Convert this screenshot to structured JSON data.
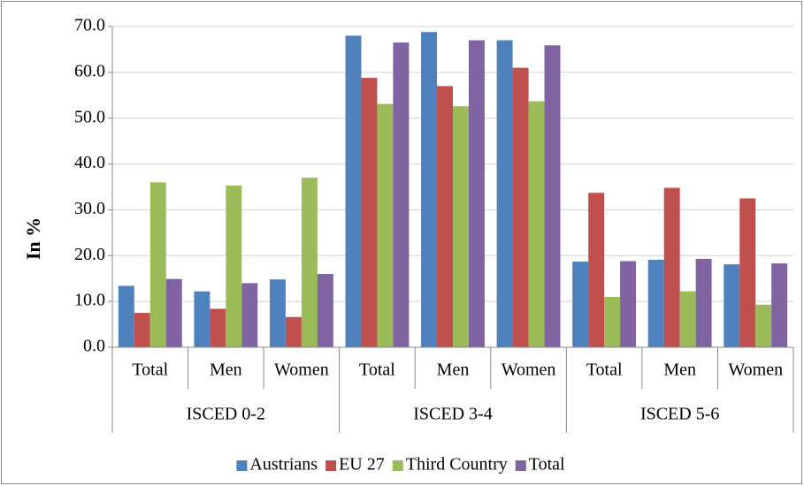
{
  "chart_data": {
    "type": "bar",
    "y_label": "In %",
    "groups": [
      "ISCED 0-2",
      "ISCED 3-4",
      "ISCED 5-6"
    ],
    "categories": [
      "Total",
      "Men",
      "Women",
      "Total",
      "Men",
      "Women",
      "Total",
      "Men",
      "Women"
    ],
    "series": [
      {
        "name": "Austrians",
        "color": "#4f81bd",
        "values": [
          13.4,
          12.2,
          14.8,
          68.0,
          68.8,
          67.0,
          18.7,
          19.1,
          18.1
        ]
      },
      {
        "name": "EU 27",
        "color": "#c0504d",
        "values": [
          7.5,
          8.4,
          6.6,
          58.8,
          57.0,
          61.0,
          33.7,
          34.8,
          32.5
        ]
      },
      {
        "name": "Third Country",
        "color": "#9bbb59",
        "values": [
          36.0,
          35.3,
          37.0,
          53.1,
          52.6,
          53.7,
          11.0,
          12.2,
          9.3
        ]
      },
      {
        "name": "Total",
        "color": "#8064a2",
        "values": [
          14.9,
          14.0,
          16.0,
          66.5,
          67.0,
          65.9,
          18.8,
          19.3,
          18.3
        ]
      }
    ],
    "ylim": [
      0,
      70
    ],
    "yticks": [
      {
        "value": 0,
        "label": "0.0"
      },
      {
        "value": 10,
        "label": "10.0"
      },
      {
        "value": 20,
        "label": "20.0"
      },
      {
        "value": 30,
        "label": "30.0"
      },
      {
        "value": 40,
        "label": "40.0"
      },
      {
        "value": 50,
        "label": "50.0"
      },
      {
        "value": 60,
        "label": "60.0"
      },
      {
        "value": 70,
        "label": "70.0"
      }
    ],
    "grid": true,
    "legend": "bottom"
  }
}
